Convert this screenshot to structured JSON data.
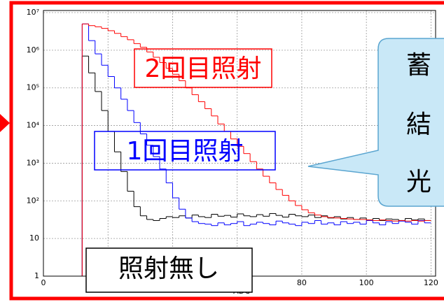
{
  "chart_data": {
    "type": "histogram",
    "log_y": true,
    "grid": true,
    "x_label": "ADC",
    "bins": [
      12,
      14,
      16,
      18,
      20,
      22,
      24,
      26,
      28,
      30,
      32,
      34,
      36,
      38,
      40,
      42,
      44,
      46,
      48,
      50,
      52,
      54,
      56,
      58,
      60,
      62,
      64,
      66,
      68,
      70,
      72,
      74,
      76,
      78,
      80,
      82,
      84,
      86,
      88,
      90,
      92,
      94,
      96,
      98,
      100,
      102,
      104,
      106,
      108,
      110,
      112,
      114,
      116,
      118,
      120
    ],
    "series": [
      {
        "name": "2回目照射",
        "color": "#ff0000",
        "values": [
          5000000,
          4500000,
          4200000,
          3800000,
          3300000,
          2800000,
          2300000,
          1900000,
          1500000,
          1200000,
          900000,
          650000,
          470000,
          330000,
          230000,
          155000,
          100000,
          66000,
          43000,
          28000,
          18000,
          11000,
          7000,
          4400,
          2800,
          1800,
          1100,
          700,
          450,
          300,
          200,
          140,
          100,
          75,
          58,
          48,
          42,
          38,
          36,
          35,
          34,
          33,
          32,
          32,
          31,
          30,
          31,
          30,
          29,
          30,
          29,
          30,
          29,
          30
        ]
      },
      {
        "name": "1回目照射",
        "color": "#0000ff",
        "values": [
          5000000,
          1800000,
          800000,
          400000,
          200000,
          100000,
          50000,
          25000,
          12000,
          6000,
          3000,
          1500,
          700,
          300,
          120,
          60,
          35,
          28,
          25,
          24,
          22,
          26,
          23,
          25,
          28,
          22,
          24,
          27,
          25,
          23,
          29,
          26,
          24,
          22,
          27,
          25,
          30,
          24,
          26,
          23,
          28,
          25,
          27,
          24,
          30,
          26,
          23,
          28,
          25,
          29,
          27,
          24,
          30,
          26
        ]
      },
      {
        "name": "照射無し",
        "color": "#000000",
        "values": [
          700000,
          250000,
          80000,
          25000,
          7000,
          2000,
          600,
          180,
          70,
          40,
          32,
          30,
          34,
          38,
          36,
          40,
          35,
          42,
          38,
          36,
          44,
          39,
          41,
          37,
          45,
          40,
          38,
          43,
          39,
          46,
          41,
          37,
          44,
          40,
          38,
          42,
          36,
          40,
          35,
          38,
          33,
          36,
          32,
          35,
          31,
          34,
          30,
          33,
          32,
          30,
          34,
          31,
          33,
          30
        ]
      }
    ],
    "xlim": [
      0,
      121
    ],
    "xticks": [
      0,
      20,
      40,
      60,
      80,
      100,
      120
    ],
    "ylim": [
      1,
      10000000
    ],
    "yticks": [
      1,
      10,
      {
        "value": 100,
        "label": "10²"
      },
      {
        "value": 1000,
        "label": "10³"
      },
      {
        "value": 10000,
        "label": "10⁴"
      },
      {
        "value": 100000,
        "label": "10⁵"
      },
      {
        "value": 1000000,
        "label": "10⁶"
      },
      {
        "value": 10000000,
        "label": "10⁷"
      }
    ]
  },
  "callout": {
    "lines": [
      "蓄",
      "結",
      "光"
    ]
  }
}
